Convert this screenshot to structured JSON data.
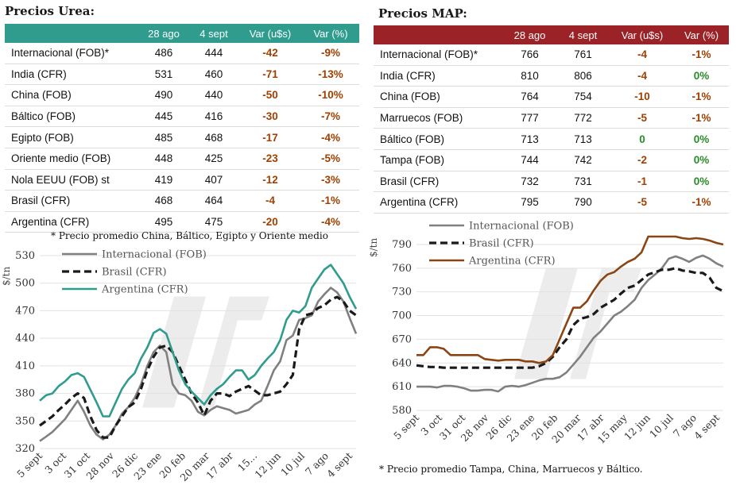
{
  "urea": {
    "title": "Precios Urea:",
    "headers": [
      "",
      "28 ago",
      "4 sept",
      "Var (u$s)",
      "Var (%)"
    ],
    "rows": [
      [
        "Internacional (FOB)*",
        "486",
        "444",
        "-42",
        "-9%"
      ],
      [
        "India (CFR)",
        "531",
        "460",
        "-71",
        "-13%"
      ],
      [
        "China (FOB)",
        "490",
        "440",
        "-50",
        "-10%"
      ],
      [
        "Báltico (FOB)",
        "445",
        "416",
        "-30",
        "-7%"
      ],
      [
        "Egipto (FOB)",
        "485",
        "468",
        "-17",
        "-4%"
      ],
      [
        "Oriente medio (FOB)",
        "448",
        "425",
        "-23",
        "-5%"
      ],
      [
        "Nola EEUU (FOB) st",
        "419",
        "407",
        "-12",
        "-3%"
      ],
      [
        "Brasil (CFR)",
        "468",
        "464",
        "-4",
        "-1%"
      ],
      [
        "Argentina (CFR)",
        "495",
        "475",
        "-20",
        "-4%"
      ]
    ],
    "note": "* Precio promedio China, Báltico, Egipto y Oriente medio"
  },
  "map": {
    "title": "Precios MAP:",
    "headers": [
      "",
      "28 ago",
      "4 sept",
      "Var (u$s)",
      "Var (%)"
    ],
    "rows": [
      [
        "Internacional (FOB)*",
        "766",
        "761",
        "-4",
        "-1%"
      ],
      [
        "India (CFR)",
        "810",
        "806",
        "-4",
        "0%"
      ],
      [
        "China (FOB)",
        "764",
        "754",
        "-10",
        "-1%"
      ],
      [
        "Marruecos (FOB)",
        "777",
        "772",
        "-5",
        "-1%"
      ],
      [
        "Báltico (FOB)",
        "713",
        "713",
        "0",
        "0%"
      ],
      [
        "Tampa (FOB)",
        "744",
        "742",
        "-2",
        "0%"
      ],
      [
        "Brasil (CFR)",
        "732",
        "731",
        "-1",
        "0%"
      ],
      [
        "Argentina (CFR)",
        "795",
        "790",
        "-5",
        "-1%"
      ]
    ],
    "note": "* Precio promedio Tampa, China, Marruecos y Báltico."
  },
  "colors": {
    "urea_header": "#2f9c8e",
    "map_header": "#9b2226",
    "negative": "#a04000",
    "zero": "#2a8a2a",
    "internacional": "#808080",
    "brasil": "#1a1a1a",
    "argentina_urea": "#2f9c8e",
    "argentina_map": "#8b4513"
  },
  "chart_data": [
    {
      "type": "line",
      "ylabel": "$/tn",
      "ylim": [
        320,
        530
      ],
      "yticks": [
        320,
        350,
        380,
        410,
        440,
        470,
        500,
        530
      ],
      "xticks": [
        "5 sept",
        "3 oct",
        "31 oct",
        "28 nov",
        "26 dic",
        "23 ene",
        "20 feb",
        "20 mar",
        "17 abr",
        "15...",
        "12 jun",
        "10 jul",
        "7 ago",
        "4 sept"
      ],
      "grid": true,
      "legend": "top-left",
      "series": [
        {
          "name": "Internacional (FOB)",
          "style": "solid",
          "values": [
            328,
            333,
            338,
            345,
            352,
            362,
            372,
            360,
            345,
            335,
            330,
            335,
            345,
            358,
            365,
            375,
            390,
            410,
            425,
            432,
            425,
            390,
            380,
            378,
            372,
            360,
            356,
            362,
            366,
            364,
            362,
            358,
            360,
            362,
            368,
            372,
            388,
            405,
            415,
            438,
            443,
            460,
            462,
            465,
            480,
            488,
            495,
            490,
            480,
            462,
            445
          ]
        },
        {
          "name": "Brasil (CFR)",
          "style": "dashed",
          "values": [
            345,
            350,
            355,
            362,
            368,
            375,
            380,
            375,
            355,
            340,
            332,
            332,
            345,
            355,
            365,
            370,
            385,
            405,
            420,
            430,
            432,
            425,
            410,
            395,
            380,
            370,
            356,
            372,
            380,
            380,
            377,
            382,
            385,
            388,
            383,
            378,
            378,
            380,
            382,
            390,
            400,
            450,
            465,
            467,
            473,
            476,
            482,
            485,
            480,
            470,
            465
          ]
        },
        {
          "name": "Argentina (CFR)",
          "style": "solid",
          "values": [
            372,
            378,
            380,
            388,
            393,
            400,
            402,
            398,
            384,
            370,
            355,
            355,
            370,
            385,
            395,
            402,
            418,
            430,
            446,
            450,
            445,
            425,
            405,
            390,
            382,
            375,
            368,
            378,
            385,
            390,
            398,
            405,
            405,
            395,
            400,
            410,
            418,
            425,
            438,
            460,
            470,
            468,
            475,
            495,
            505,
            515,
            520,
            510,
            500,
            485,
            472
          ]
        }
      ]
    },
    {
      "type": "line",
      "ylabel": "$/tn",
      "ylim": [
        580,
        800
      ],
      "yticks": [
        580,
        610,
        640,
        670,
        700,
        730,
        760,
        790
      ],
      "xticks": [
        "5 sept",
        "3 oct",
        "31 oct",
        "28 nov",
        "26 dic",
        "23 ene",
        "20 feb",
        "20 mar",
        "17 abr",
        "15 may",
        "12 jun",
        "10 jul",
        "7 ago",
        "4 sept"
      ],
      "grid": true,
      "legend": "top-left",
      "series": [
        {
          "name": "Internacional (FOB)",
          "style": "solid",
          "values": [
            610,
            610,
            610,
            609,
            611,
            611,
            610,
            608,
            605,
            605,
            606,
            606,
            604,
            610,
            611,
            610,
            612,
            615,
            618,
            620,
            620,
            622,
            628,
            638,
            648,
            660,
            672,
            680,
            690,
            700,
            705,
            712,
            720,
            735,
            745,
            752,
            760,
            772,
            775,
            772,
            768,
            773,
            776,
            772,
            766,
            762
          ]
        },
        {
          "name": "Brasil (CFR)",
          "style": "dashed",
          "values": [
            637,
            636,
            635,
            635,
            634,
            634,
            634,
            634,
            634,
            634,
            634,
            634,
            634,
            634,
            634,
            634,
            634,
            634,
            636,
            640,
            648,
            660,
            670,
            688,
            696,
            698,
            702,
            710,
            715,
            720,
            728,
            735,
            738,
            745,
            752,
            755,
            758,
            758,
            760,
            757,
            756,
            754,
            754,
            748,
            735,
            731
          ]
        },
        {
          "name": "Argentina (CFR)",
          "style": "solid",
          "values": [
            650,
            650,
            660,
            660,
            658,
            650,
            650,
            650,
            650,
            650,
            645,
            644,
            643,
            644,
            644,
            644,
            642,
            642,
            640,
            642,
            650,
            670,
            690,
            710,
            710,
            718,
            732,
            744,
            752,
            755,
            762,
            768,
            772,
            780,
            800,
            800,
            800,
            800,
            800,
            798,
            797,
            798,
            797,
            795,
            792,
            790
          ]
        }
      ]
    }
  ]
}
